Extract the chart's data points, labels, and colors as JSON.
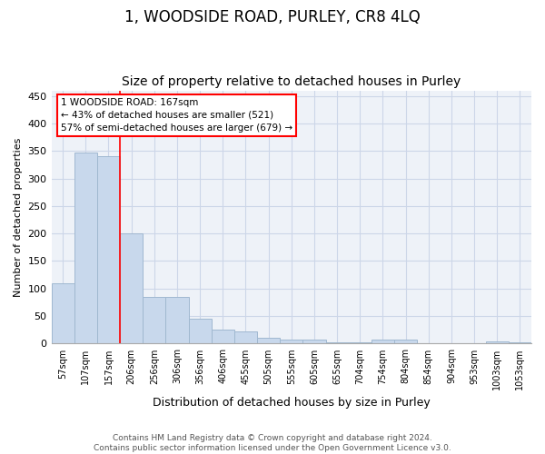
{
  "title": "1, WOODSIDE ROAD, PURLEY, CR8 4LQ",
  "subtitle": "Size of property relative to detached houses in Purley",
  "xlabel": "Distribution of detached houses by size in Purley",
  "ylabel": "Number of detached properties",
  "footnote": "Contains HM Land Registry data © Crown copyright and database right 2024.\nContains public sector information licensed under the Open Government Licence v3.0.",
  "bar_labels": [
    "57sqm",
    "107sqm",
    "157sqm",
    "206sqm",
    "256sqm",
    "306sqm",
    "356sqm",
    "406sqm",
    "455sqm",
    "505sqm",
    "555sqm",
    "605sqm",
    "655sqm",
    "704sqm",
    "754sqm",
    "804sqm",
    "854sqm",
    "904sqm",
    "953sqm",
    "1003sqm",
    "1053sqm"
  ],
  "bar_values": [
    110,
    347,
    340,
    200,
    85,
    85,
    46,
    25,
    22,
    11,
    8,
    7,
    2,
    2,
    8,
    7,
    1,
    0,
    0,
    4,
    3
  ],
  "bar_color": "#c8d8ec",
  "bar_edge_color": "#a0b8d0",
  "property_line_x": 2.5,
  "property_label": "1 WOODSIDE ROAD: 167sqm",
  "annotation_line1": "← 43% of detached houses are smaller (521)",
  "annotation_line2": "57% of semi-detached houses are larger (679) →",
  "ylim": [
    0,
    460
  ],
  "yticks": [
    0,
    50,
    100,
    150,
    200,
    250,
    300,
    350,
    400,
    450
  ],
  "grid_color": "#ccd6e8",
  "background_color": "#eef2f8",
  "title_fontsize": 12,
  "subtitle_fontsize": 10,
  "footnote_fontsize": 6.5
}
